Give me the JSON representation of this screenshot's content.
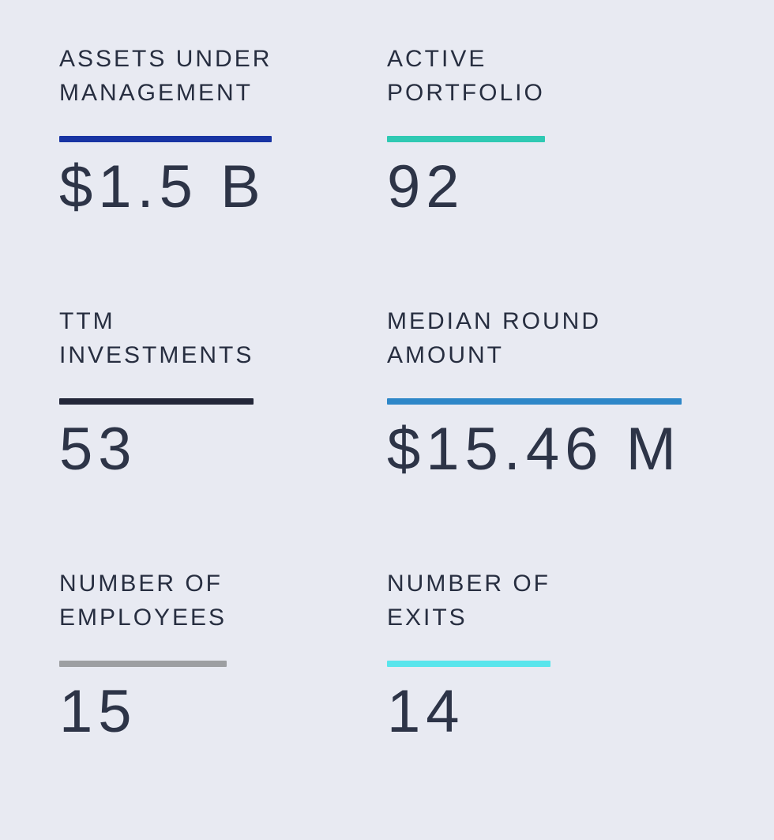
{
  "page": {
    "background_color": "#e8eaf2",
    "label_text_color": "#272e40",
    "value_text_color": "#2d3447"
  },
  "cards": [
    {
      "id": "assets-under-management",
      "label_line1": "ASSETS UNDER",
      "label_line2": "MANAGEMENT",
      "value": "$1.5 B",
      "accent": "#1834a3"
    },
    {
      "id": "active-portfolio",
      "label_line1": "ACTIVE",
      "label_line2": "PORTFOLIO",
      "value": "92",
      "accent": "#2fc9b3"
    },
    {
      "id": "ttm-investments",
      "label_line1": "TTM",
      "label_line2": "INVESTMENTS",
      "value": "53",
      "accent": "#232739"
    },
    {
      "id": "median-round-amount",
      "label_line1": "MEDIAN ROUND",
      "label_line2": "AMOUNT",
      "value": "$15.46 M",
      "accent": "#2e87c8"
    },
    {
      "id": "number-of-employees",
      "label_line1": "NUMBER OF",
      "label_line2": "EMPLOYEES",
      "value": "15",
      "accent": "#9d9fa2"
    },
    {
      "id": "number-of-exits",
      "label_line1": "NUMBER OF",
      "label_line2": "EXITS",
      "value": "14",
      "accent": "#59e5ec"
    }
  ]
}
